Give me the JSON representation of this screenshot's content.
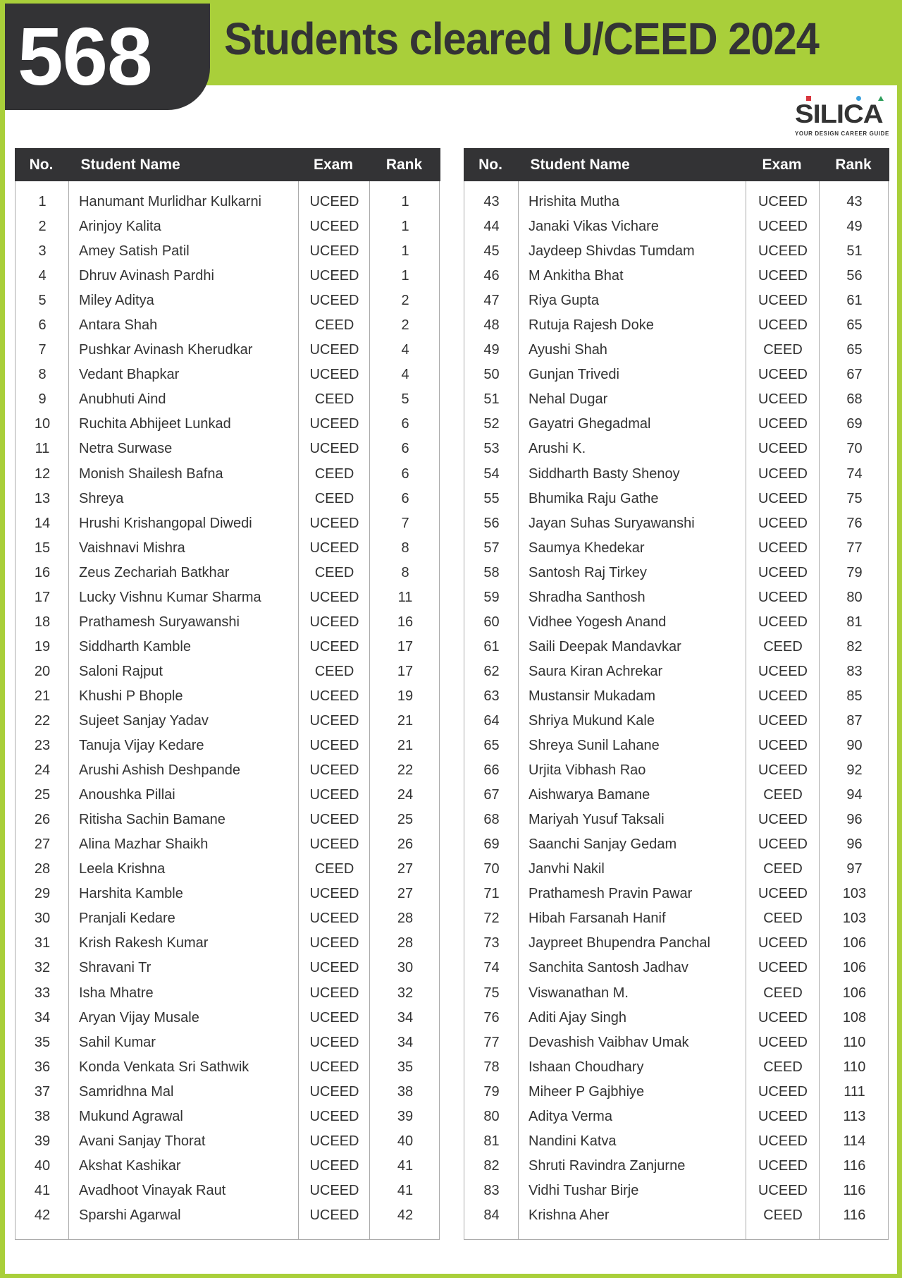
{
  "header": {
    "count": "568",
    "title": "Students cleared U/CEED 2024"
  },
  "logo": {
    "word": "SILICA",
    "tagline": "YOUR DESIGN CAREER GUIDE",
    "dot_colors": [
      "#d9363e",
      "#3aa0dd",
      "#2e9e5b"
    ]
  },
  "colors": {
    "accent_green": "#a9cf3a",
    "dark": "#333335"
  },
  "table_headers": [
    "No.",
    "Student Name",
    "Exam",
    "Rank"
  ],
  "tables": [
    [
      [
        "1",
        "Hanumant Murlidhar Kulkarni",
        "UCEED",
        "1"
      ],
      [
        "2",
        "Arinjoy Kalita",
        "UCEED",
        "1"
      ],
      [
        "3",
        "Amey Satish Patil",
        "UCEED",
        "1"
      ],
      [
        "4",
        "Dhruv Avinash Pardhi",
        "UCEED",
        "1"
      ],
      [
        "5",
        "Miley Aditya",
        "UCEED",
        "2"
      ],
      [
        "6",
        "Antara Shah",
        "CEED",
        "2"
      ],
      [
        "7",
        "Pushkar Avinash Kherudkar",
        "UCEED",
        "4"
      ],
      [
        "8",
        "Vedant Bhapkar",
        "UCEED",
        "4"
      ],
      [
        "9",
        "Anubhuti Aind",
        "CEED",
        "5"
      ],
      [
        "10",
        "Ruchita Abhijeet Lunkad",
        "UCEED",
        "6"
      ],
      [
        "11",
        "Netra Surwase",
        "UCEED",
        "6"
      ],
      [
        "12",
        "Monish Shailesh Bafna",
        "CEED",
        "6"
      ],
      [
        "13",
        "Shreya",
        "CEED",
        "6"
      ],
      [
        "14",
        "Hrushi Krishangopal Diwedi",
        "UCEED",
        "7"
      ],
      [
        "15",
        "Vaishnavi Mishra",
        "UCEED",
        "8"
      ],
      [
        "16",
        "Zeus Zechariah Batkhar",
        "CEED",
        "8"
      ],
      [
        "17",
        "Lucky Vishnu Kumar Sharma",
        "UCEED",
        "11"
      ],
      [
        "18",
        "Prathamesh Suryawanshi",
        "UCEED",
        "16"
      ],
      [
        "19",
        "Siddharth Kamble",
        "UCEED",
        "17"
      ],
      [
        "20",
        "Saloni Rajput",
        "CEED",
        "17"
      ],
      [
        "21",
        "Khushi P Bhople",
        "UCEED",
        "19"
      ],
      [
        "22",
        "Sujeet Sanjay Yadav",
        "UCEED",
        "21"
      ],
      [
        "23",
        "Tanuja Vijay Kedare",
        "UCEED",
        "21"
      ],
      [
        "24",
        "Arushi Ashish Deshpande",
        "UCEED",
        "22"
      ],
      [
        "25",
        "Anoushka Pillai",
        "UCEED",
        "24"
      ],
      [
        "26",
        "Ritisha Sachin Bamane",
        "UCEED",
        "25"
      ],
      [
        "27",
        "Alina Mazhar Shaikh",
        "UCEED",
        "26"
      ],
      [
        "28",
        "Leela Krishna",
        "CEED",
        "27"
      ],
      [
        "29",
        "Harshita Kamble",
        "UCEED",
        "27"
      ],
      [
        "30",
        "Pranjali Kedare",
        "UCEED",
        "28"
      ],
      [
        "31",
        "Krish Rakesh Kumar",
        "UCEED",
        "28"
      ],
      [
        "32",
        "Shravani Tr",
        "UCEED",
        "30"
      ],
      [
        "33",
        "Isha Mhatre",
        "UCEED",
        "32"
      ],
      [
        "34",
        "Aryan Vijay Musale",
        "UCEED",
        "34"
      ],
      [
        "35",
        "Sahil Kumar",
        "UCEED",
        "34"
      ],
      [
        "36",
        "Konda Venkata Sri Sathwik",
        "UCEED",
        "35"
      ],
      [
        "37",
        "Samridhna Mal",
        "UCEED",
        "38"
      ],
      [
        "38",
        "Mukund Agrawal",
        "UCEED",
        "39"
      ],
      [
        "39",
        "Avani Sanjay Thorat",
        "UCEED",
        "40"
      ],
      [
        "40",
        "Akshat Kashikar",
        "UCEED",
        "41"
      ],
      [
        "41",
        "Avadhoot Vinayak Raut",
        "UCEED",
        "41"
      ],
      [
        "42",
        "Sparshi Agarwal",
        "UCEED",
        "42"
      ]
    ],
    [
      [
        "43",
        "Hrishita Mutha",
        "UCEED",
        "43"
      ],
      [
        "44",
        "Janaki Vikas Vichare",
        "UCEED",
        "49"
      ],
      [
        "45",
        "Jaydeep Shivdas Tumdam",
        "UCEED",
        "51"
      ],
      [
        "46",
        "M Ankitha Bhat",
        "UCEED",
        "56"
      ],
      [
        "47",
        "Riya Gupta",
        "UCEED",
        "61"
      ],
      [
        "48",
        "Rutuja Rajesh Doke",
        "UCEED",
        "65"
      ],
      [
        "49",
        "Ayushi Shah",
        "CEED",
        "65"
      ],
      [
        "50",
        "Gunjan Trivedi",
        "UCEED",
        "67"
      ],
      [
        "51",
        "Nehal Dugar",
        "UCEED",
        "68"
      ],
      [
        "52",
        "Gayatri Ghegadmal",
        "UCEED",
        "69"
      ],
      [
        "53",
        "Arushi K.",
        "UCEED",
        "70"
      ],
      [
        "54",
        "Siddharth Basty Shenoy",
        "UCEED",
        "74"
      ],
      [
        "55",
        "Bhumika Raju Gathe",
        "UCEED",
        "75"
      ],
      [
        "56",
        "Jayan Suhas Suryawanshi",
        "UCEED",
        "76"
      ],
      [
        "57",
        "Saumya Khedekar",
        "UCEED",
        "77"
      ],
      [
        "58",
        "Santosh Raj Tirkey",
        "UCEED",
        "79"
      ],
      [
        "59",
        "Shradha Santhosh",
        "UCEED",
        "80"
      ],
      [
        "60",
        "Vidhee Yogesh Anand",
        "UCEED",
        "81"
      ],
      [
        "61",
        "Saili Deepak Mandavkar",
        "CEED",
        "82"
      ],
      [
        "62",
        "Saura Kiran Achrekar",
        "UCEED",
        "83"
      ],
      [
        "63",
        "Mustansir Mukadam",
        "UCEED",
        "85"
      ],
      [
        "64",
        "Shriya Mukund Kale",
        "UCEED",
        "87"
      ],
      [
        "65",
        "Shreya Sunil Lahane",
        "UCEED",
        "90"
      ],
      [
        "66",
        "Urjita Vibhash Rao",
        "UCEED",
        "92"
      ],
      [
        "67",
        "Aishwarya Bamane",
        "CEED",
        "94"
      ],
      [
        "68",
        "Mariyah Yusuf Taksali",
        "UCEED",
        "96"
      ],
      [
        "69",
        "Saanchi Sanjay Gedam",
        "UCEED",
        "96"
      ],
      [
        "70",
        "Janvhi Nakil",
        "CEED",
        "97"
      ],
      [
        "71",
        "Prathamesh Pravin Pawar",
        "UCEED",
        "103"
      ],
      [
        "72",
        "Hibah Farsanah Hanif",
        "CEED",
        "103"
      ],
      [
        "73",
        "Jaypreet Bhupendra Panchal",
        "UCEED",
        "106"
      ],
      [
        "74",
        "Sanchita Santosh Jadhav",
        "UCEED",
        "106"
      ],
      [
        "75",
        "Viswanathan M.",
        "CEED",
        "106"
      ],
      [
        "76",
        "Aditi Ajay Singh",
        "UCEED",
        "108"
      ],
      [
        "77",
        "Devashish Vaibhav Umak",
        "UCEED",
        "110"
      ],
      [
        "78",
        "Ishaan Choudhary",
        "CEED",
        "110"
      ],
      [
        "79",
        "Miheer P Gajbhiye",
        "UCEED",
        "111"
      ],
      [
        "80",
        "Aditya Verma",
        "UCEED",
        "113"
      ],
      [
        "81",
        "Nandini Katva",
        "UCEED",
        "114"
      ],
      [
        "82",
        "Shruti Ravindra Zanjurne",
        "UCEED",
        "116"
      ],
      [
        "83",
        "Vidhi Tushar Birje",
        "UCEED",
        "116"
      ],
      [
        "84",
        "Krishna Aher",
        "CEED",
        "116"
      ]
    ]
  ]
}
